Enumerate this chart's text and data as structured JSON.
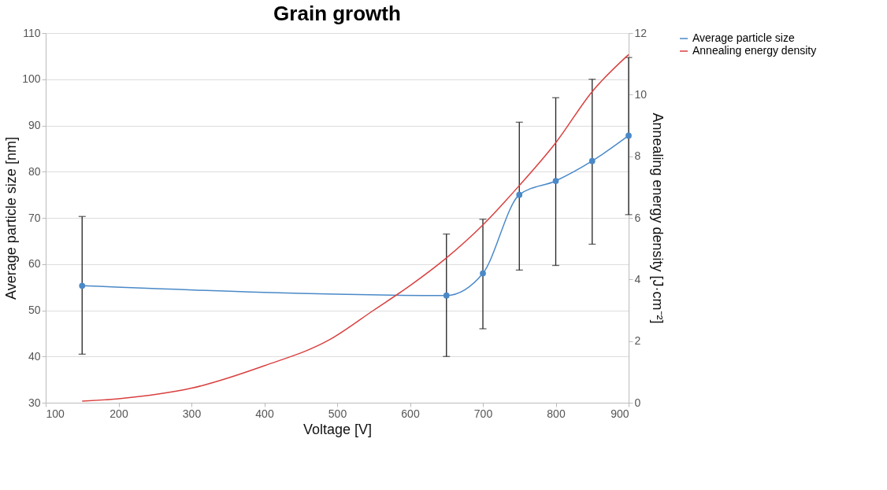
{
  "chart_data": {
    "type": "line",
    "title": "Grain growth",
    "xlabel": "Voltage [V]",
    "ylabel": "Average particle size [nm]",
    "y2label": "Annealing energy density [J·cm⁻²]",
    "xlim": [
      100,
      900
    ],
    "xticks": [
      100,
      200,
      300,
      400,
      500,
      600,
      700,
      800,
      900
    ],
    "ylim": [
      30,
      110
    ],
    "yticks": [
      30,
      40,
      50,
      60,
      70,
      80,
      90,
      100,
      110
    ],
    "y2lim": [
      0,
      12
    ],
    "y2ticks": [
      0,
      2,
      4,
      6,
      8,
      10,
      12
    ],
    "grid": "y",
    "legend": "right",
    "series": [
      {
        "name": "Average particle size",
        "color": "#4a89c8",
        "marker": "circle",
        "x": [
          150,
          650,
          700,
          750,
          800,
          850,
          900
        ],
        "values": [
          55.3,
          53.2,
          58,
          75,
          78,
          82.3,
          87.8
        ],
        "errors": [
          [
            40.5,
            70.3
          ],
          [
            40,
            66.5
          ],
          [
            46,
            69.7
          ],
          [
            58.7,
            90.7
          ],
          [
            59.7,
            96
          ],
          [
            64.3,
            100
          ],
          [
            70.7,
            104.7
          ]
        ]
      },
      {
        "name": "Annealing energy density",
        "color": "#d9403f",
        "marker": "none",
        "axis": "y2",
        "x": [
          150,
          200,
          300,
          400,
          490,
          550,
          600,
          650,
          700,
          750,
          800,
          850,
          900
        ],
        "values": [
          0.05,
          0.13,
          0.47,
          1.2,
          2.05,
          3.0,
          3.8,
          4.7,
          5.77,
          7.05,
          8.44,
          10.1,
          11.3
        ]
      }
    ]
  }
}
